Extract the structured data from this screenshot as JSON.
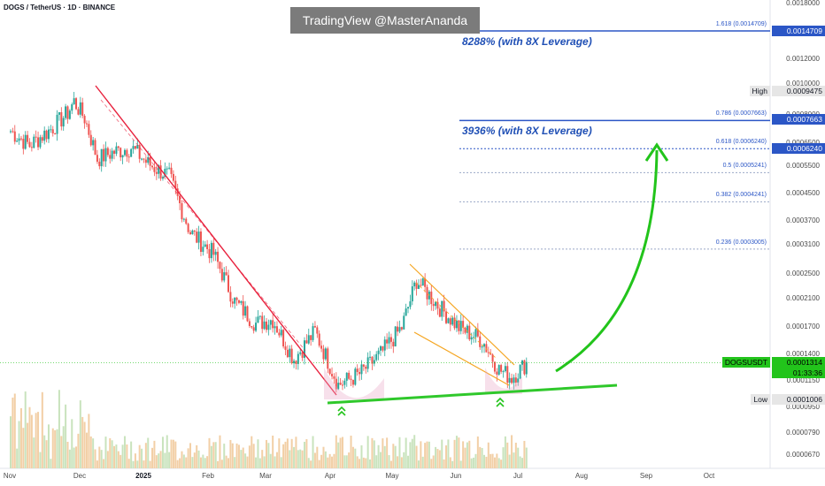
{
  "header": {
    "symbol": "DOGS / TetherUS · 1D · BINANCE",
    "watermark": "TradingView @MasterAnanda"
  },
  "annotations": {
    "lev_top": "8288% (with 8X Leverage)",
    "lev_mid": "3936% (with 8X Leverage)"
  },
  "fib_levels": [
    {
      "label": "1.618 (0.0014709)",
      "price": 0.0014709,
      "color": "#2b56c6",
      "solid": true,
      "tag": "0.0014709"
    },
    {
      "label": "0.786 (0.0007663)",
      "price": 0.0007663,
      "color": "#2b56c6",
      "solid": true,
      "tag": "0.0007663"
    },
    {
      "label": "0.618 (0.0006240)",
      "price": 0.000624,
      "color": "#2b56c6",
      "solid": false,
      "tag": "0.0006240"
    },
    {
      "label": "0.5 (0.0005241)",
      "price": 0.0005241,
      "color": "#9aa7c8",
      "solid": false
    },
    {
      "label": "0.382 (0.0004241)",
      "price": 0.0004241,
      "color": "#9aa7c8",
      "solid": false
    },
    {
      "label": "0.236 (0.0003005)",
      "price": 0.0003005,
      "color": "#9aa7c8",
      "solid": false
    }
  ],
  "y_axis": {
    "ticks": [
      "0.0018000",
      "0.0012000",
      "0.0010000",
      "0.0008000",
      "0.0006500",
      "0.0005500",
      "0.0004500",
      "0.0003700",
      "0.0003100",
      "0.0002500",
      "0.0002100",
      "0.0001700",
      "0.0001400",
      "0.0001150",
      "0.0000950",
      "0.0000790",
      "0.0000670"
    ],
    "high_label": "High",
    "high_value": "0.0009475",
    "low_label": "Low",
    "low_value": "0.0001006",
    "symbol_tag": "DOGSUSDT",
    "last_price": "0.0001314",
    "countdown": "01:33:36"
  },
  "x_axis": {
    "labels": [
      {
        "text": "Nov",
        "bold": false
      },
      {
        "text": "Dec",
        "bold": false
      },
      {
        "text": "2025",
        "bold": true
      },
      {
        "text": "Feb",
        "bold": false
      },
      {
        "text": "Mar",
        "bold": false
      },
      {
        "text": "Apr",
        "bold": false
      },
      {
        "text": "May",
        "bold": false
      },
      {
        "text": "Jun",
        "bold": false
      },
      {
        "text": "Jul",
        "bold": false
      },
      {
        "text": "Aug",
        "bold": false
      },
      {
        "text": "Sep",
        "bold": false
      },
      {
        "text": "Oct",
        "bold": false
      }
    ]
  },
  "chart_data": {
    "type": "candlestick",
    "title": "DOGS / TetherUS · 1D · BINANCE",
    "y_scale": "log",
    "ylim": [
      6.2e-05,
      0.00185
    ],
    "x_range": [
      "2024-10-31",
      "2025-11-01"
    ],
    "series_close_approx": [
      {
        "date": "2024-11-01",
        "close": 0.00071
      },
      {
        "date": "2024-11-10",
        "close": 0.00064
      },
      {
        "date": "2024-11-20",
        "close": 0.00072
      },
      {
        "date": "2024-11-28",
        "close": 0.00081
      },
      {
        "date": "2024-12-01",
        "close": 0.00088
      },
      {
        "date": "2024-12-06",
        "close": 0.00078
      },
      {
        "date": "2024-12-12",
        "close": 0.00058
      },
      {
        "date": "2024-12-20",
        "close": 0.00061
      },
      {
        "date": "2024-12-28",
        "close": 0.00063
      },
      {
        "date": "2025-01-05",
        "close": 0.00056
      },
      {
        "date": "2025-01-15",
        "close": 0.00051
      },
      {
        "date": "2025-01-25",
        "close": 0.00034
      },
      {
        "date": "2025-02-05",
        "close": 0.00029
      },
      {
        "date": "2025-02-15",
        "close": 0.000205
      },
      {
        "date": "2025-02-25",
        "close": 0.000175
      },
      {
        "date": "2025-03-05",
        "close": 0.00018
      },
      {
        "date": "2025-03-15",
        "close": 0.000135
      },
      {
        "date": "2025-03-25",
        "close": 0.000165
      },
      {
        "date": "2025-04-05",
        "close": 0.000112
      },
      {
        "date": "2025-04-15",
        "close": 0.000121
      },
      {
        "date": "2025-04-25",
        "close": 0.00014
      },
      {
        "date": "2025-05-05",
        "close": 0.00017
      },
      {
        "date": "2025-05-12",
        "close": 0.00024
      },
      {
        "date": "2025-05-22",
        "close": 0.0002
      },
      {
        "date": "2025-06-01",
        "close": 0.00017
      },
      {
        "date": "2025-06-12",
        "close": 0.000155
      },
      {
        "date": "2025-06-20",
        "close": 0.000125
      },
      {
        "date": "2025-06-26",
        "close": 0.000118
      },
      {
        "date": "2025-07-03",
        "close": 0.0001314
      }
    ],
    "high": 0.0009475,
    "low": 0.0001006,
    "last": 0.0001314
  },
  "colors": {
    "up": "#26a69a",
    "down": "#ef5350",
    "red_trend": "#e8213d",
    "support": "#2fc82b",
    "wedge": "#f5a623",
    "arrow": "#22c41b",
    "vol_up": "#c9e3bd",
    "vol_down": "#f2cfa6"
  }
}
